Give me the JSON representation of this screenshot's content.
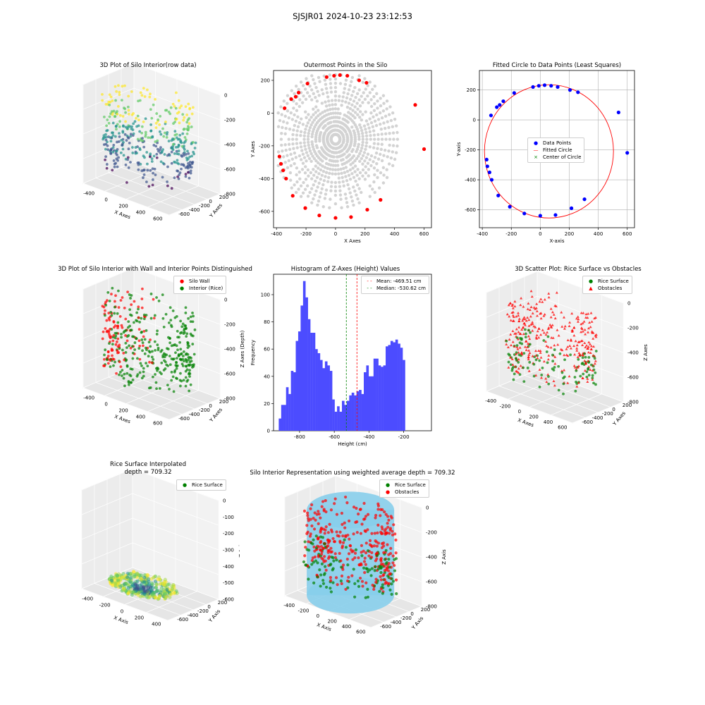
{
  "figure": {
    "title": "SJSJR01 2024-10-23 23:12:53"
  },
  "chart_data": [
    {
      "id": "p1",
      "type": "scatter3d",
      "title": "3D Plot of Silo Interior(row data)",
      "xlabel": "X Axes",
      "ylabel": "Y Axes",
      "zlabel": "Z Axes (Depth)",
      "xticks": [
        "-400",
        "0",
        "200",
        "400",
        "600"
      ],
      "yticks": [
        "-600",
        "-400",
        "-200",
        "0",
        "200"
      ],
      "zticks": [
        "0",
        "-200",
        "-400",
        "-600",
        "-800"
      ],
      "colormap": "viridis"
    },
    {
      "id": "p2",
      "type": "scatter",
      "title": "Outermost Points in the Silo",
      "xlabel": "X Axes",
      "ylabel": "Y Axes",
      "xlim": [
        -420,
        650
      ],
      "ylim": [
        -700,
        260
      ],
      "xticks": [
        -400,
        -200,
        0,
        200,
        400,
        600
      ],
      "yticks": [
        200,
        0,
        -200,
        -400,
        -600
      ],
      "colors": {
        "all": "#d3d3d3",
        "outer": "#ff0000"
      },
      "outer_points": [
        [
          -380,
          -265
        ],
        [
          -370,
          -310
        ],
        [
          -355,
          -350
        ],
        [
          -335,
          -400
        ],
        [
          -290,
          -505
        ],
        [
          -205,
          -580
        ],
        [
          -110,
          -625
        ],
        [
          0,
          -640
        ],
        [
          105,
          -635
        ],
        [
          215,
          -590
        ],
        [
          305,
          -530
        ],
        [
          -345,
          30
        ],
        [
          -300,
          85
        ],
        [
          -270,
          100
        ],
        [
          -250,
          125
        ],
        [
          -190,
          180
        ],
        [
          -60,
          220
        ],
        [
          -10,
          228
        ],
        [
          30,
          232
        ],
        [
          80,
          228
        ],
        [
          160,
          200
        ],
        [
          210,
          185
        ],
        [
          540,
          50
        ],
        [
          600,
          -220
        ]
      ]
    },
    {
      "id": "p3",
      "type": "scatter",
      "title": "Fitted Circle to Data Points (Least Squares)",
      "xlabel": "X-axis",
      "ylabel": "Y-axis",
      "xlim": [
        -420,
        650
      ],
      "ylim": [
        -720,
        330
      ],
      "xticks": [
        -400,
        -200,
        0,
        200,
        400,
        600
      ],
      "yticks": [
        200,
        0,
        -200,
        -400,
        -600
      ],
      "legend": [
        "Data Points",
        "Fitted Circle",
        "Center of Circle"
      ],
      "colors": {
        "points": "#0000ff",
        "circle": "#ff0000",
        "center": "#008000"
      },
      "circle": {
        "cx": 60,
        "cy": -210,
        "r": 445
      },
      "points": [
        [
          -370,
          -265
        ],
        [
          -365,
          -310
        ],
        [
          -350,
          -350
        ],
        [
          -335,
          -400
        ],
        [
          -290,
          -505
        ],
        [
          -210,
          -580
        ],
        [
          -110,
          -625
        ],
        [
          0,
          -640
        ],
        [
          105,
          -635
        ],
        [
          215,
          -590
        ],
        [
          305,
          -530
        ],
        [
          -340,
          30
        ],
        [
          -300,
          85
        ],
        [
          -280,
          100
        ],
        [
          -255,
          125
        ],
        [
          -180,
          180
        ],
        [
          -50,
          220
        ],
        [
          -10,
          228
        ],
        [
          30,
          232
        ],
        [
          75,
          228
        ],
        [
          120,
          220
        ],
        [
          205,
          200
        ],
        [
          260,
          185
        ],
        [
          540,
          50
        ],
        [
          600,
          -220
        ]
      ]
    },
    {
      "id": "p4",
      "type": "scatter3d",
      "title": "3D Plot of Silo Interior with Wall and Interior Points Distinguished",
      "xlabel": "X Axes",
      "ylabel": "Y Axes",
      "zlabel": "Z Axes (Depth)",
      "xticks": [
        "-400",
        "0",
        "200",
        "400",
        "600"
      ],
      "yticks": [
        "-600",
        "-400",
        "-200",
        "0",
        "200"
      ],
      "zticks": [
        "0",
        "-200",
        "-400",
        "-600",
        "-800"
      ],
      "legend": [
        "Silo Wall",
        "Interior (Rice)"
      ],
      "colors": {
        "wall": "#ff0000",
        "interior": "#008000"
      }
    },
    {
      "id": "p5",
      "type": "bar",
      "title": "Histogram of Z-Axes (Height) Values",
      "xlabel": "Height (cm)",
      "ylabel": "Frequency",
      "xlim": [
        -950,
        -40
      ],
      "ylim": [
        0,
        115
      ],
      "xticks": [
        -800,
        -600,
        -400,
        -200
      ],
      "yticks": [
        0,
        20,
        40,
        60,
        80,
        100
      ],
      "bin_start": -920,
      "bin_width": 14,
      "values": [
        9,
        19,
        19,
        32,
        27,
        44,
        43,
        66,
        73,
        92,
        110,
        98,
        82,
        72,
        72,
        60,
        57,
        52,
        46,
        51,
        48,
        44,
        23,
        14,
        18,
        14,
        22,
        19,
        22,
        26,
        28,
        26,
        29,
        30,
        27,
        43,
        48,
        40,
        40,
        53,
        53,
        48,
        47,
        48,
        62,
        63,
        66,
        65,
        67,
        64,
        61,
        52
      ],
      "mean": -469.51,
      "median": -530.62,
      "legend": [
        "Mean: -469.51 cm",
        "Median: -530.62 cm"
      ],
      "colors": {
        "bars": "#4c4cff",
        "mean": "#ff0000",
        "median": "#008000"
      }
    },
    {
      "id": "p6",
      "type": "scatter3d",
      "title": "3D Scatter Plot: Rice Surface vs Obstacles",
      "xlabel": "X Axes",
      "ylabel": "Y Axes",
      "zlabel": "Z Axes",
      "xticks": [
        "-400",
        "-200",
        "0",
        "200",
        "400",
        "600"
      ],
      "yticks": [
        "-600",
        "-400",
        "-200",
        "0",
        "200"
      ],
      "zticks": [
        "0",
        "-200",
        "-400",
        "-600",
        "-800"
      ],
      "legend": [
        "Rice Surface",
        "Obstacles"
      ],
      "colors": {
        "rice": "#008000",
        "obstacles": "#ff0000"
      }
    },
    {
      "id": "p7",
      "type": "surface3d",
      "title": "Rice Surface Interpolated",
      "subtitle": "depth = 709.32",
      "xlabel": "X Axis",
      "ylabel": "Y Axis",
      "zlabel": "Z Axis",
      "xticks": [
        "-400",
        "-200",
        "0",
        "200",
        "400"
      ],
      "yticks": [
        "-600",
        "-400",
        "-200",
        "0",
        "200"
      ],
      "zticks": [
        "0",
        "-100",
        "-200",
        "-300",
        "-400",
        "-500",
        "-600"
      ],
      "legend": [
        "Rice Surface"
      ],
      "colors": {
        "rice": "#008000"
      }
    },
    {
      "id": "p8",
      "type": "scatter3d",
      "title": "Silo Interior Representation using weighted average depth = 709.32",
      "xlabel": "X Axis",
      "ylabel": "Y Axis",
      "zlabel": "Z Axis",
      "xticks": [
        "-400",
        "-200",
        "0",
        "200",
        "400",
        "600"
      ],
      "yticks": [
        "-600",
        "-400",
        "-200",
        "0",
        "200"
      ],
      "zticks": [
        "0",
        "-200",
        "-400",
        "-600",
        "-800"
      ],
      "legend": [
        "Rice Surface",
        "Obstacles"
      ],
      "colors": {
        "rice": "#008000",
        "obstacles": "#ff0000",
        "cylinder": "#87ceeb"
      }
    }
  ]
}
